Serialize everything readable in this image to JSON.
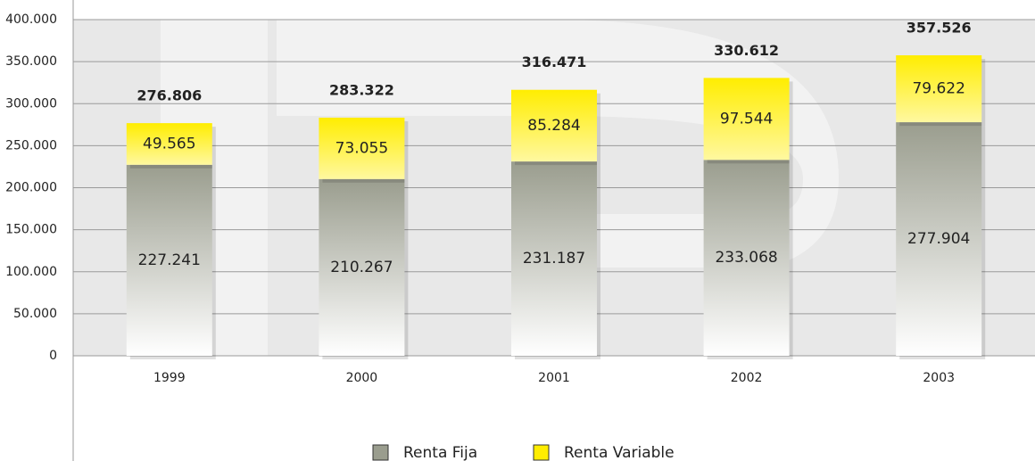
{
  "chart_data": {
    "type": "stacked_bar",
    "categories": [
      "1999",
      "2000",
      "2001",
      "2002",
      "2003"
    ],
    "series": [
      {
        "name": "Renta Fija",
        "color": "#9a9d8e",
        "values": [
          227241,
          210267,
          231187,
          233068,
          277904
        ],
        "value_labels": [
          "227.241",
          "210.267",
          "231.187",
          "233.068",
          "277.904"
        ]
      },
      {
        "name": "Renta Variable",
        "color": "#ffed00",
        "values": [
          49565,
          73055,
          85284,
          97544,
          79622
        ],
        "value_labels": [
          "49.565",
          "73.055",
          "85.284",
          "97.544",
          "79.622"
        ]
      }
    ],
    "totals": {
      "values": [
        276806,
        283322,
        316471,
        330612,
        357526
      ],
      "value_labels": [
        "276.806",
        "283.322",
        "316.471",
        "330.612",
        "357.526"
      ]
    },
    "ylim": [
      0,
      400000
    ],
    "yticks": [
      0,
      {
        "value": 50000,
        "label": "50.000"
      },
      {
        "value": 100000,
        "label": "100.000"
      },
      {
        "value": 150000,
        "label": "150.000"
      },
      {
        "value": 200000,
        "label": "200.000"
      },
      {
        "value": 250000,
        "label": "250.000"
      },
      {
        "value": 300000,
        "label": "300.000"
      },
      {
        "value": 350000,
        "label": "350.000"
      },
      {
        "value": 400000,
        "label": "400.000"
      }
    ],
    "grid": true,
    "legend": "bottom"
  }
}
